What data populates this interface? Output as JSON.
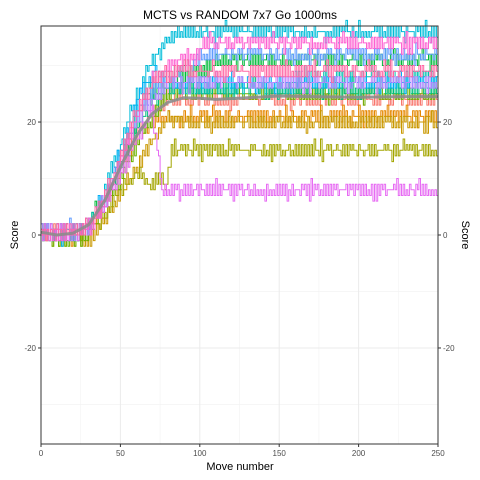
{
  "chart_data": {
    "type": "line",
    "title": "MCTS vs RANDOM 7x7 Go 1000ms",
    "xlabel": "Move number",
    "ylabel": "Score",
    "ylabel_right": "Score",
    "xlim": [
      0,
      250
    ],
    "ylim": [
      -37,
      37
    ],
    "x_ticks": [
      0,
      50,
      100,
      150,
      200,
      250
    ],
    "y_ticks": [
      -20,
      0,
      20
    ],
    "grid": true,
    "legend": "none",
    "series": [
      {
        "color": "#f8766d",
        "points": [
          [
            0,
            0
          ],
          [
            10,
            1
          ],
          [
            20,
            0
          ],
          [
            30,
            1
          ],
          [
            40,
            6
          ],
          [
            50,
            12
          ],
          [
            60,
            18
          ],
          [
            70,
            22
          ],
          [
            78,
            24
          ],
          [
            250,
            24
          ]
        ]
      },
      {
        "color": "#e58700",
        "points": [
          [
            0,
            1
          ],
          [
            10,
            0
          ],
          [
            20,
            -1
          ],
          [
            30,
            1
          ],
          [
            40,
            5
          ],
          [
            50,
            11
          ],
          [
            60,
            17
          ],
          [
            70,
            20
          ],
          [
            80,
            21
          ],
          [
            250,
            21
          ]
        ]
      },
      {
        "color": "#c99800",
        "points": [
          [
            0,
            0
          ],
          [
            10,
            -1
          ],
          [
            20,
            0
          ],
          [
            30,
            -1
          ],
          [
            40,
            3
          ],
          [
            50,
            7
          ],
          [
            60,
            12
          ],
          [
            70,
            17
          ],
          [
            80,
            20
          ],
          [
            250,
            20
          ]
        ]
      },
      {
        "color": "#a3a500",
        "points": [
          [
            0,
            1
          ],
          [
            10,
            0
          ],
          [
            20,
            1
          ],
          [
            30,
            0
          ],
          [
            40,
            4
          ],
          [
            50,
            8
          ],
          [
            60,
            11
          ],
          [
            70,
            9
          ],
          [
            76,
            10
          ],
          [
            78,
            8
          ],
          [
            82,
            15
          ],
          [
            250,
            15
          ]
        ]
      },
      {
        "color": "#6bb100",
        "points": [
          [
            0,
            0
          ],
          [
            10,
            -1
          ],
          [
            20,
            -1
          ],
          [
            30,
            0
          ],
          [
            40,
            5
          ],
          [
            50,
            10
          ],
          [
            60,
            16
          ],
          [
            70,
            21
          ],
          [
            78,
            25
          ],
          [
            250,
            25
          ]
        ]
      },
      {
        "color": "#00ba38",
        "points": [
          [
            0,
            1
          ],
          [
            10,
            0
          ],
          [
            20,
            0
          ],
          [
            30,
            2
          ],
          [
            40,
            7
          ],
          [
            50,
            13
          ],
          [
            60,
            20
          ],
          [
            70,
            25
          ],
          [
            80,
            28
          ],
          [
            100,
            29
          ],
          [
            108,
            30
          ],
          [
            112,
            31
          ],
          [
            250,
            31
          ]
        ]
      },
      {
        "color": "#00bf7d",
        "points": [
          [
            0,
            0
          ],
          [
            10,
            1
          ],
          [
            20,
            0
          ],
          [
            30,
            1
          ],
          [
            40,
            6
          ],
          [
            50,
            12
          ],
          [
            60,
            19
          ],
          [
            70,
            24
          ],
          [
            80,
            26
          ],
          [
            250,
            26
          ]
        ]
      },
      {
        "color": "#00c0af",
        "points": [
          [
            0,
            1
          ],
          [
            10,
            0
          ],
          [
            20,
            1
          ],
          [
            30,
            2
          ],
          [
            40,
            6
          ],
          [
            50,
            14
          ],
          [
            60,
            22
          ],
          [
            70,
            27
          ],
          [
            80,
            26
          ],
          [
            160,
            26
          ],
          [
            162,
            28
          ],
          [
            250,
            28
          ]
        ]
      },
      {
        "color": "#00bcd8",
        "points": [
          [
            0,
            0
          ],
          [
            10,
            1
          ],
          [
            20,
            0
          ],
          [
            30,
            1
          ],
          [
            40,
            8
          ],
          [
            50,
            16
          ],
          [
            60,
            25
          ],
          [
            70,
            31
          ],
          [
            78,
            34
          ],
          [
            85,
            36
          ],
          [
            250,
            36
          ]
        ]
      },
      {
        "color": "#00b0f6",
        "points": [
          [
            0,
            1
          ],
          [
            10,
            0
          ],
          [
            20,
            0
          ],
          [
            30,
            2
          ],
          [
            40,
            7
          ],
          [
            50,
            15
          ],
          [
            60,
            23
          ],
          [
            70,
            29
          ],
          [
            80,
            27
          ],
          [
            250,
            27
          ]
        ]
      },
      {
        "color": "#619cff",
        "points": [
          [
            0,
            0
          ],
          [
            10,
            1
          ],
          [
            20,
            1
          ],
          [
            30,
            1
          ],
          [
            40,
            6
          ],
          [
            50,
            14
          ],
          [
            60,
            21
          ],
          [
            70,
            26
          ],
          [
            80,
            28
          ],
          [
            95,
            30
          ],
          [
            100,
            32
          ],
          [
            250,
            32
          ]
        ]
      },
      {
        "color": "#b983ff",
        "points": [
          [
            0,
            1
          ],
          [
            10,
            0
          ],
          [
            20,
            0
          ],
          [
            30,
            2
          ],
          [
            40,
            6
          ],
          [
            50,
            13
          ],
          [
            60,
            20
          ],
          [
            70,
            24
          ],
          [
            80,
            27
          ],
          [
            250,
            27
          ]
        ]
      },
      {
        "color": "#e76bf3",
        "points": [
          [
            0,
            0
          ],
          [
            10,
            1
          ],
          [
            20,
            0
          ],
          [
            30,
            1
          ],
          [
            40,
            5
          ],
          [
            50,
            11
          ],
          [
            60,
            17
          ],
          [
            70,
            22
          ],
          [
            76,
            8
          ],
          [
            250,
            8
          ]
        ]
      },
      {
        "color": "#fd61d1",
        "points": [
          [
            0,
            1
          ],
          [
            10,
            0
          ],
          [
            20,
            1
          ],
          [
            30,
            1
          ],
          [
            40,
            6
          ],
          [
            50,
            13
          ],
          [
            60,
            21
          ],
          [
            70,
            27
          ],
          [
            80,
            30
          ],
          [
            100,
            32
          ],
          [
            103,
            34
          ],
          [
            250,
            34
          ]
        ]
      },
      {
        "color": "#ff67a4",
        "points": [
          [
            0,
            0
          ],
          [
            10,
            1
          ],
          [
            20,
            0
          ],
          [
            30,
            2
          ],
          [
            40,
            7
          ],
          [
            50,
            14
          ],
          [
            60,
            22
          ],
          [
            70,
            27
          ],
          [
            80,
            29
          ],
          [
            250,
            29
          ]
        ]
      }
    ],
    "smooth": {
      "color": "#8c8c8c",
      "x": [
        0,
        10,
        20,
        30,
        40,
        50,
        60,
        70,
        80,
        90,
        100,
        110,
        130,
        150,
        170,
        200,
        230,
        250
      ],
      "y": [
        0.5,
        0,
        0.3,
        1.8,
        6,
        12,
        17.5,
        21.5,
        23.5,
        24.3,
        24.2,
        24,
        24.3,
        24.6,
        24.5,
        24.4,
        24.5,
        24.5
      ]
    }
  }
}
